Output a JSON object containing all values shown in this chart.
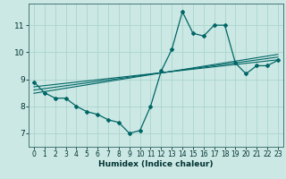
{
  "xlabel": "Humidex (Indice chaleur)",
  "bg_color": "#cce8e4",
  "line_color": "#006666",
  "grid_color": "#aad4ce",
  "x_data": [
    0,
    1,
    2,
    3,
    4,
    5,
    6,
    7,
    8,
    9,
    10,
    11,
    12,
    13,
    14,
    15,
    16,
    17,
    18,
    19,
    20,
    21,
    22,
    23
  ],
  "y_main": [
    8.9,
    8.5,
    8.3,
    8.3,
    8.0,
    7.8,
    7.7,
    7.5,
    7.4,
    7.0,
    7.1,
    8.0,
    9.3,
    10.1,
    11.5,
    10.7,
    10.6,
    11.0,
    11.0,
    9.6,
    9.2,
    9.5,
    9.5,
    9.7
  ],
  "ylim": [
    6.5,
    11.8
  ],
  "xlim": [
    -0.5,
    23.5
  ],
  "yticks": [
    7,
    8,
    9,
    10,
    11
  ],
  "xticks": [
    0,
    1,
    2,
    3,
    4,
    5,
    6,
    7,
    8,
    9,
    10,
    11,
    12,
    13,
    14,
    15,
    16,
    17,
    18,
    19,
    20,
    21,
    22,
    23
  ],
  "reg_lines": [
    {
      "x0": 0,
      "y0": 8.72,
      "x1": 23,
      "y1": 9.72
    },
    {
      "x0": 0,
      "y0": 8.6,
      "x1": 23,
      "y1": 9.82
    },
    {
      "x0": 0,
      "y0": 8.48,
      "x1": 23,
      "y1": 9.92
    }
  ]
}
